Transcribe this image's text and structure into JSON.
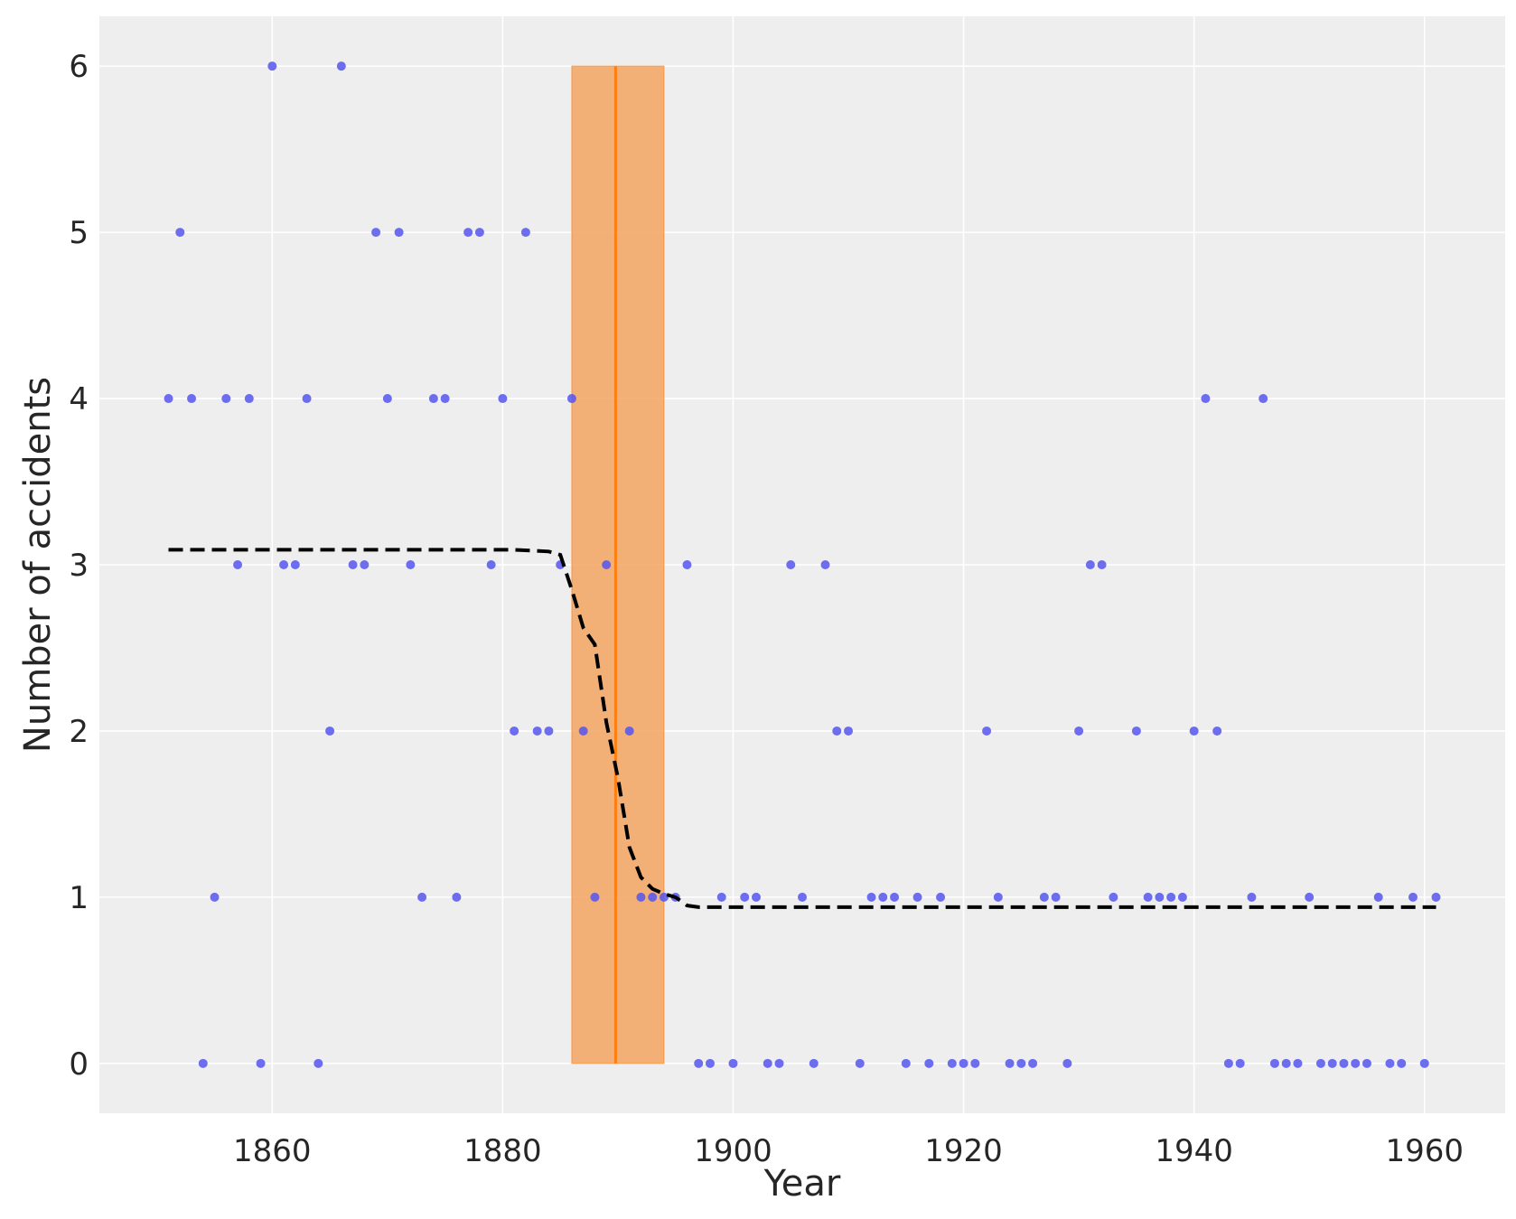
{
  "chart_data": {
    "type": "scatter",
    "title": "",
    "xlabel": "Year",
    "ylabel": "Number of accidents",
    "xlim": [
      1845,
      1967
    ],
    "ylim": [
      -0.3,
      6.3
    ],
    "xticks": [
      1860,
      1880,
      1900,
      1920,
      1940,
      1960
    ],
    "yticks": [
      0,
      1,
      2,
      3,
      4,
      5,
      6
    ],
    "grid": true,
    "background": "#eeeeee",
    "colors": {
      "points": "#5555ee",
      "band": "#f2a461",
      "changepoint": "#ff7f0e",
      "rate_line": "#000000"
    },
    "points": {
      "x": [
        1851,
        1852,
        1853,
        1854,
        1855,
        1856,
        1857,
        1858,
        1859,
        1860,
        1861,
        1862,
        1863,
        1864,
        1865,
        1866,
        1867,
        1868,
        1869,
        1870,
        1871,
        1872,
        1873,
        1874,
        1875,
        1876,
        1877,
        1878,
        1879,
        1880,
        1881,
        1882,
        1883,
        1884,
        1885,
        1886,
        1887,
        1888,
        1889,
        1890,
        1891,
        1892,
        1893,
        1894,
        1895,
        1896,
        1897,
        1898,
        1899,
        1900,
        1901,
        1902,
        1903,
        1904,
        1905,
        1906,
        1907,
        1908,
        1909,
        1910,
        1911,
        1912,
        1913,
        1914,
        1915,
        1916,
        1917,
        1918,
        1919,
        1920,
        1921,
        1922,
        1923,
        1924,
        1925,
        1926,
        1927,
        1928,
        1929,
        1930,
        1931,
        1932,
        1933,
        1934,
        1935,
        1936,
        1937,
        1938,
        1939,
        1940,
        1941,
        1942,
        1943,
        1944,
        1945,
        1946,
        1947,
        1948,
        1949,
        1950,
        1951,
        1952,
        1953,
        1954,
        1955,
        1956,
        1957,
        1958,
        1959,
        1960,
        1961
      ],
      "y": [
        4,
        5,
        4,
        0,
        1,
        4,
        3,
        4,
        0,
        6,
        3,
        3,
        4,
        0,
        2,
        6,
        3,
        3,
        5,
        4,
        5,
        3,
        1,
        4,
        4,
        1,
        5,
        5,
        3,
        4,
        2,
        5,
        2,
        2,
        3,
        4,
        2,
        1,
        3,
        null,
        2,
        1,
        1,
        1,
        1,
        3,
        0,
        0,
        1,
        0,
        1,
        1,
        0,
        0,
        3,
        1,
        0,
        3,
        2,
        2,
        0,
        1,
        1,
        1,
        0,
        1,
        0,
        1,
        0,
        0,
        0,
        2,
        1,
        0,
        0,
        0,
        1,
        1,
        0,
        2,
        3,
        3,
        1,
        null,
        2,
        1,
        1,
        1,
        1,
        2,
        4,
        2,
        0,
        0,
        1,
        4,
        0,
        0,
        0,
        1,
        0,
        0,
        0,
        0,
        0,
        1,
        0,
        0,
        1,
        0,
        1
      ]
    },
    "changepoint": {
      "mean": 1889.8,
      "hdi": [
        1886,
        1894
      ]
    },
    "rate_line": {
      "x": [
        1851,
        1881,
        1884,
        1885,
        1886,
        1887,
        1888,
        1889,
        1890,
        1891,
        1892,
        1893,
        1894,
        1895,
        1896,
        1897,
        1961
      ],
      "y": [
        3.09,
        3.09,
        3.08,
        3.06,
        2.85,
        2.62,
        2.52,
        2.05,
        1.72,
        1.3,
        1.12,
        1.05,
        1.02,
        1.0,
        0.95,
        0.94,
        0.94
      ]
    }
  }
}
